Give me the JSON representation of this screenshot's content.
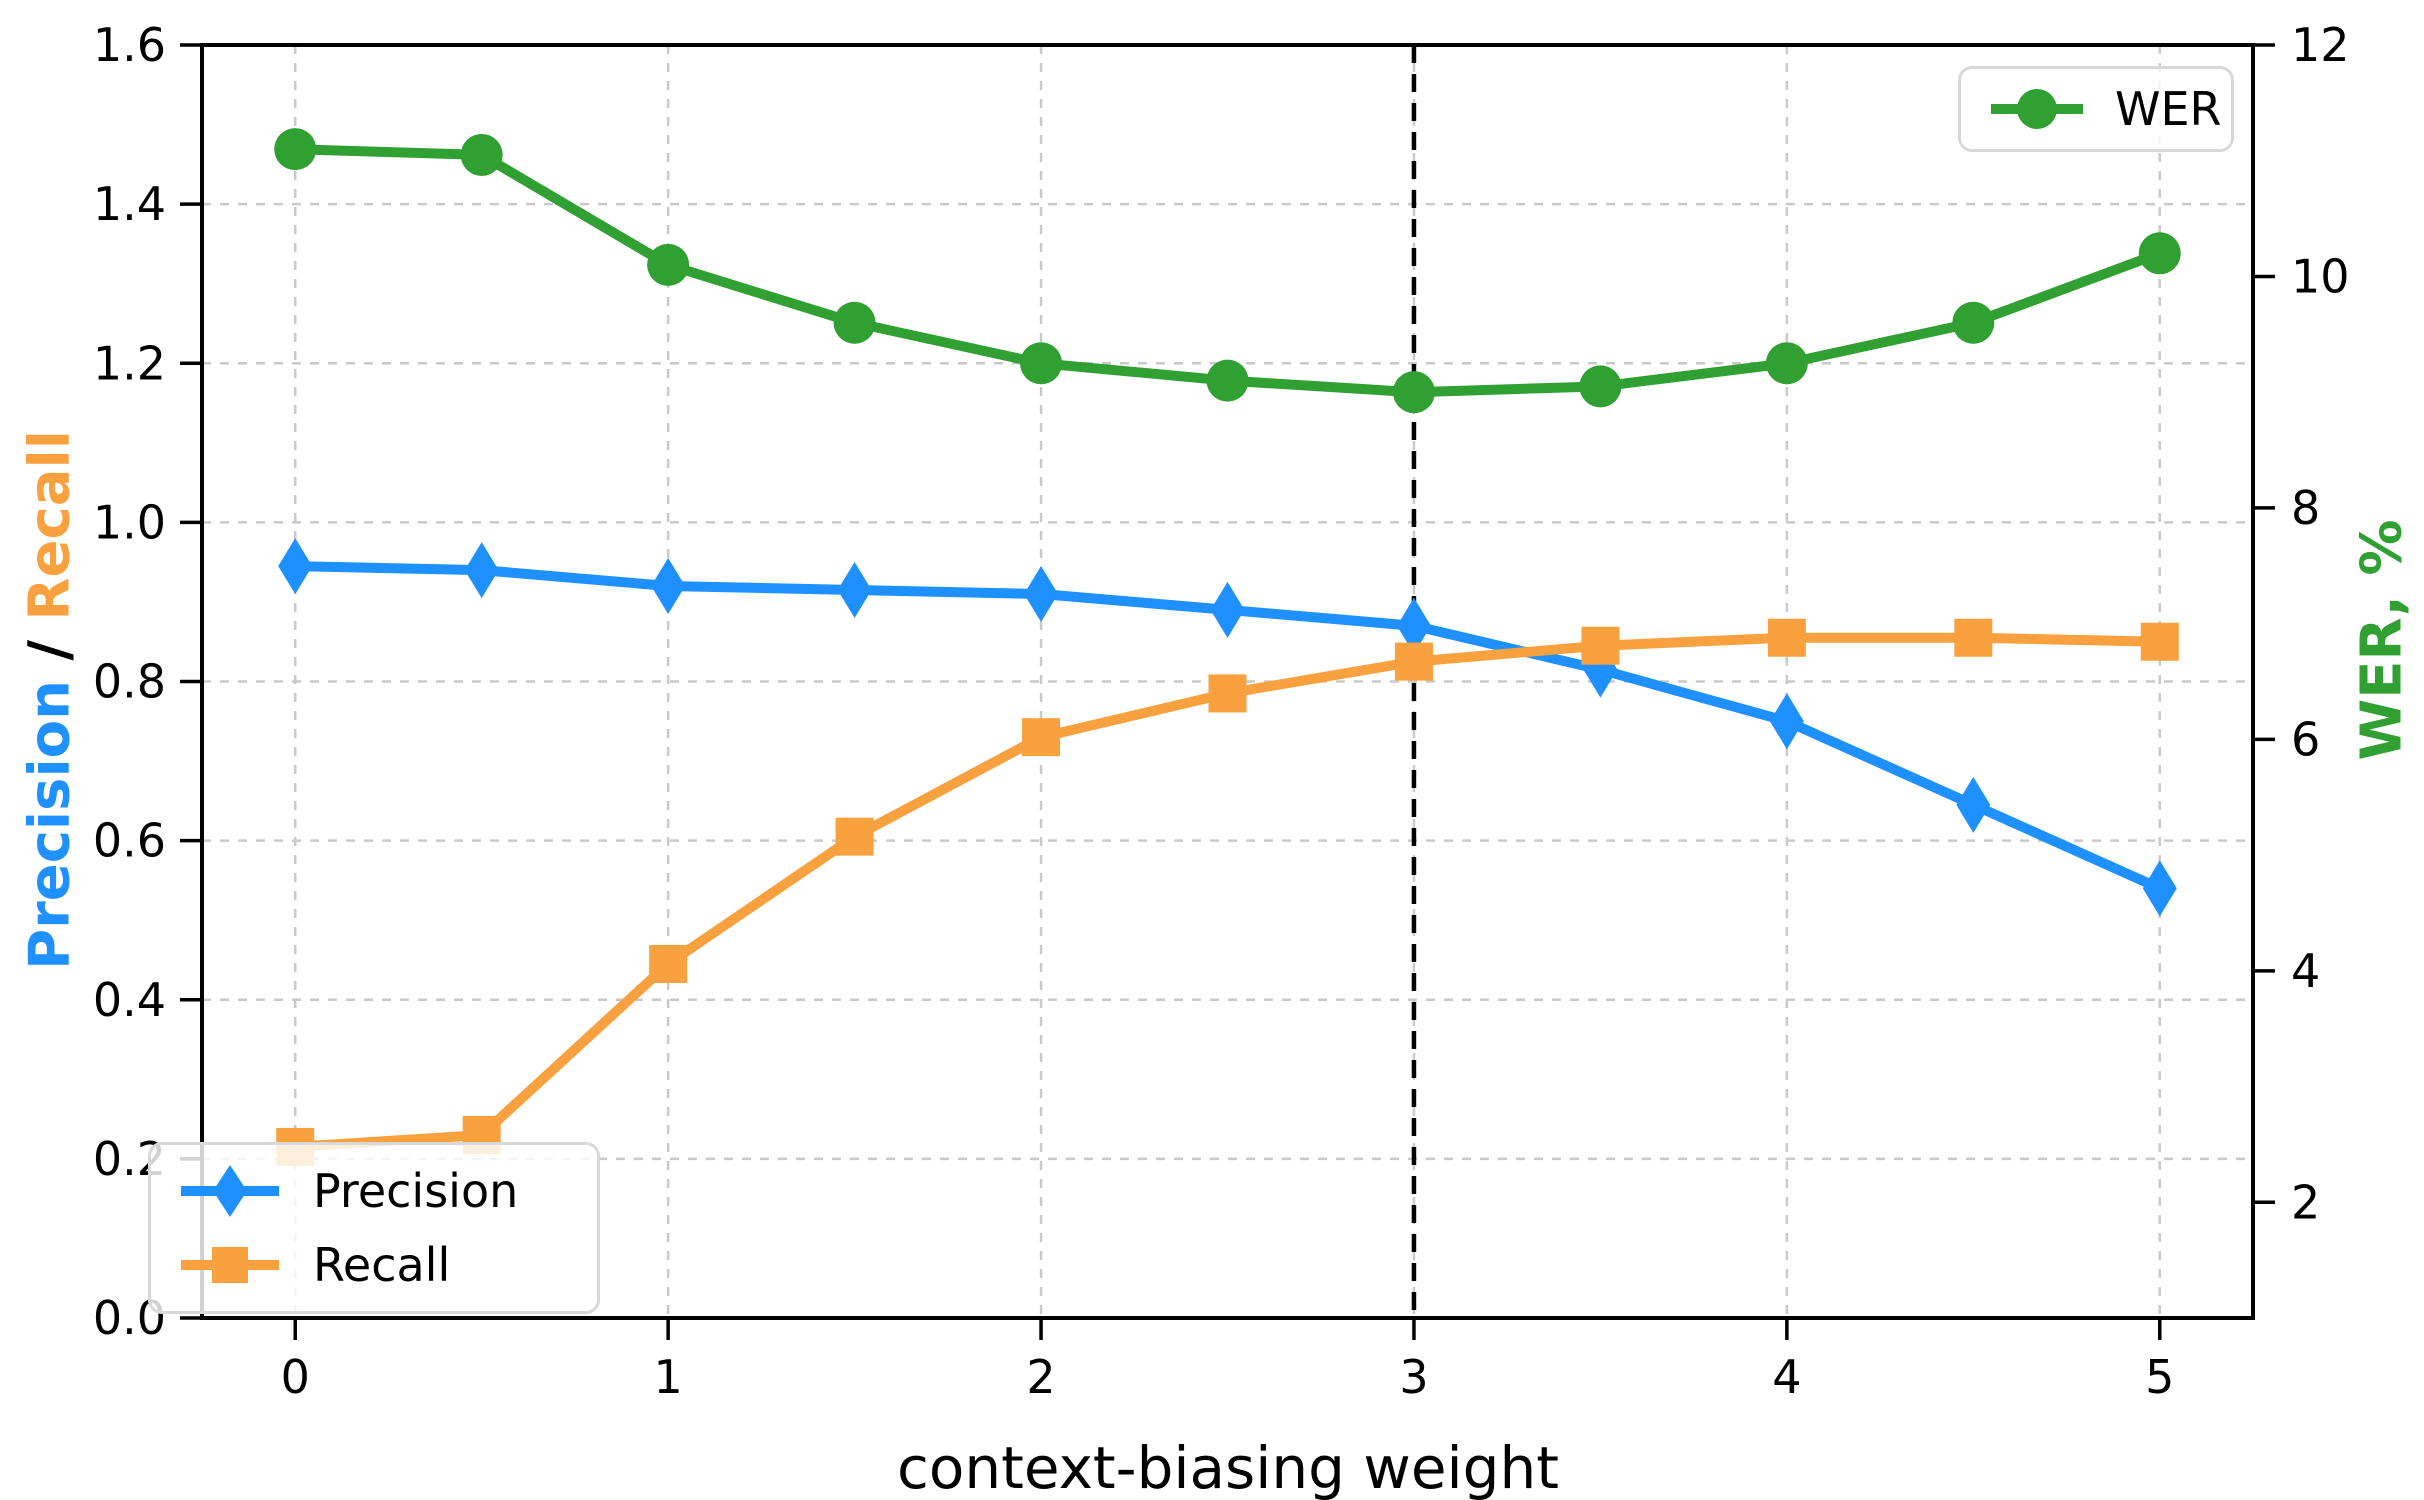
{
  "chart_data": {
    "type": "line",
    "title": "",
    "xlabel": "context-biasing weight",
    "ylabel_left_parts": {
      "precision": "Precision",
      "separator": " / ",
      "recall": "Recall"
    },
    "ylabel_right": "WER, %",
    "x": [
      0,
      0.5,
      1,
      1.5,
      2,
      2.5,
      3,
      3.5,
      4,
      4.5,
      5
    ],
    "series": [
      {
        "name": "Precision",
        "axis": "left",
        "color": "#1E90FF",
        "marker": "diamond",
        "values": [
          0.945,
          0.94,
          0.92,
          0.915,
          0.91,
          0.89,
          0.87,
          0.815,
          0.75,
          0.645,
          0.54
        ]
      },
      {
        "name": "Recall",
        "axis": "left",
        "color": "#F9A03F",
        "marker": "square",
        "values": [
          0.215,
          0.23,
          0.445,
          0.605,
          0.73,
          0.785,
          0.825,
          0.845,
          0.855,
          0.855,
          0.85
        ]
      },
      {
        "name": "WER",
        "axis": "right",
        "color": "#31A032",
        "marker": "circle",
        "values": [
          11.1,
          11.05,
          10.1,
          9.6,
          9.25,
          9.1,
          9.0,
          9.05,
          9.25,
          9.6,
          10.2
        ]
      }
    ],
    "xlim": [
      -0.25,
      5.25
    ],
    "ylim_left": [
      0,
      1.6
    ],
    "ylim_right": [
      1,
      12
    ],
    "xticks": [
      {
        "v": 0,
        "label": "0"
      },
      {
        "v": 1,
        "label": "1"
      },
      {
        "v": 2,
        "label": "2"
      },
      {
        "v": 3,
        "label": "3"
      },
      {
        "v": 4,
        "label": "4"
      },
      {
        "v": 5,
        "label": "5"
      }
    ],
    "yticks_left": [
      {
        "v": 0.0,
        "label": "0.0"
      },
      {
        "v": 0.2,
        "label": "0.2"
      },
      {
        "v": 0.4,
        "label": "0.4"
      },
      {
        "v": 0.6,
        "label": "0.6"
      },
      {
        "v": 0.8,
        "label": "0.8"
      },
      {
        "v": 1.0,
        "label": "1.0"
      },
      {
        "v": 1.2,
        "label": "1.2"
      },
      {
        "v": 1.4,
        "label": "1.4"
      },
      {
        "v": 1.6,
        "label": "1.6"
      }
    ],
    "yticks_right": [
      {
        "v": 2,
        "label": "2"
      },
      {
        "v": 4,
        "label": "4"
      },
      {
        "v": 6,
        "label": "6"
      },
      {
        "v": 8,
        "label": "8"
      },
      {
        "v": 10,
        "label": "10"
      },
      {
        "v": 12,
        "label": "12"
      }
    ],
    "vline_x": 3,
    "grid": true,
    "legends": [
      {
        "position": "upper-right",
        "items": [
          "WER"
        ]
      },
      {
        "position": "lower-left",
        "items": [
          "Precision",
          "Recall"
        ]
      }
    ],
    "colors": {
      "precision": "#1E90FF",
      "recall": "#F9A03F",
      "wer": "#31A032",
      "grid": "#C9C9C9",
      "axis": "#000000",
      "vline": "#000000",
      "legend_border": "#D8D8D8"
    }
  }
}
